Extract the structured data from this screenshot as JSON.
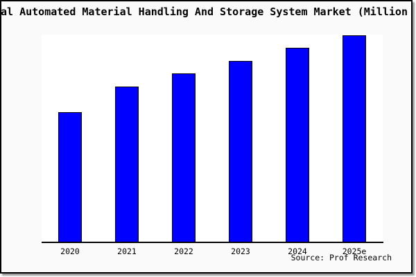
{
  "figure": {
    "title": "Global Automated Material Handling And Storage System Market (Million USD)",
    "source": "Source: Prof Research",
    "colors": {
      "bar": "#0000FF",
      "bar_edge": "#000000",
      "figure_bg": "#FAFAFA",
      "plot_bg": "#FFFFFF",
      "frame_border": "#000000",
      "axis_line": "#000000",
      "text": "#000000",
      "shadow": "#9A9A9A"
    }
  },
  "chart_data": {
    "type": "bar",
    "title": "Global Automated Material Handling And Storage System Market (Million USD)",
    "categories": [
      "2020",
      "2021",
      "2022",
      "2023",
      "2024",
      "2025e"
    ],
    "values": [
      62.7,
      75.0,
      81.3,
      87.5,
      93.7,
      99.7
    ],
    "values_note": "no y-axis shown; values are relative bar heights as percent of plot height",
    "xlabel": "",
    "ylabel": "",
    "ylim": [
      0,
      100
    ],
    "y_axis_visible": false,
    "grid": false,
    "legend": false,
    "annotations": [
      "Source: Prof Research"
    ]
  }
}
